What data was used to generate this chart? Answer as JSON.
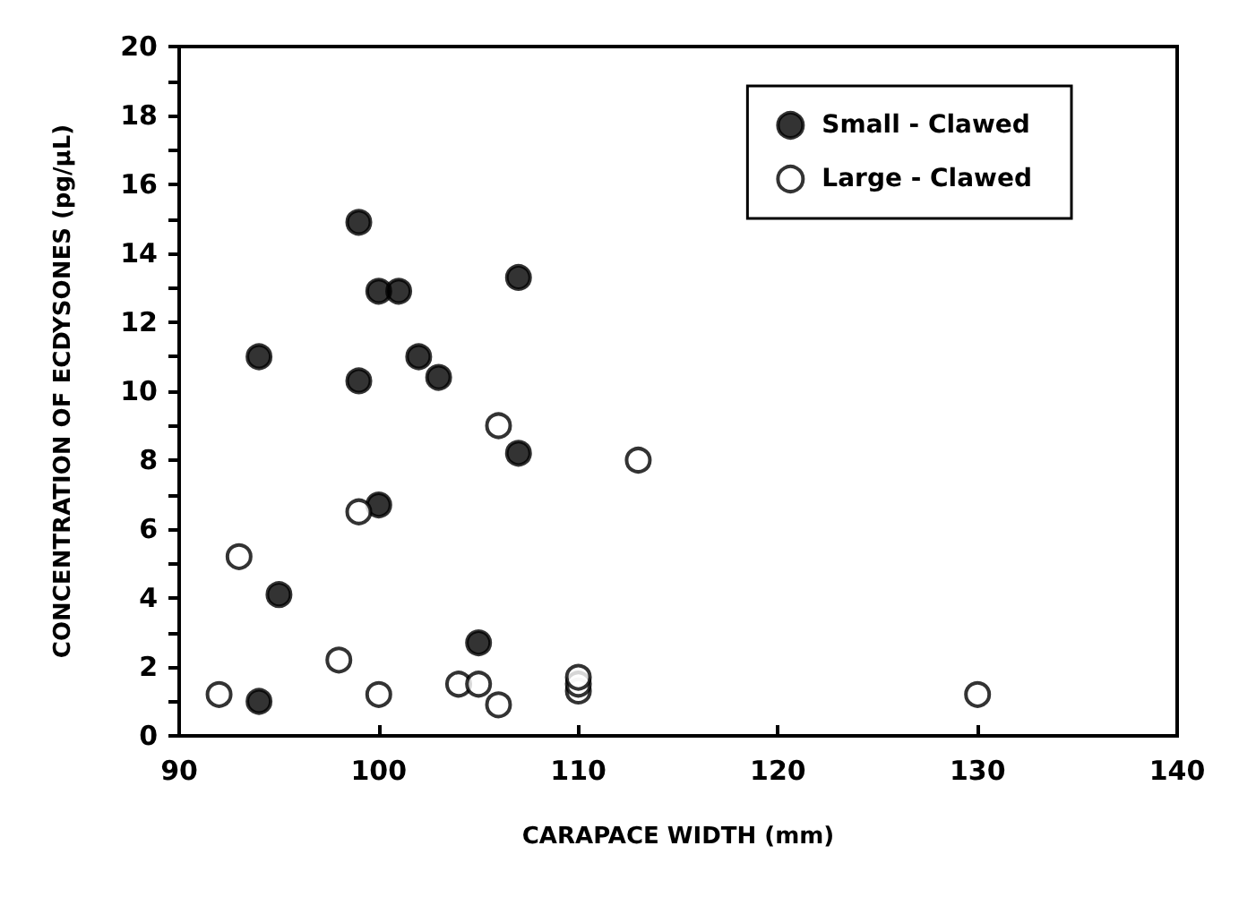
{
  "chart_data": {
    "type": "scatter",
    "xlabel": "CARAPACE WIDTH (mm)",
    "ylabel": "CONCENTRATION OF ECDYSONES (pg/µL)",
    "xlim": [
      90,
      140
    ],
    "xticks": [
      90,
      100,
      110,
      120,
      130,
      140
    ],
    "ylim": [
      0,
      20
    ],
    "yticks": [
      0,
      {
        "value": 1,
        "label": null
      },
      2,
      {
        "value": 3,
        "label": null
      },
      4,
      {
        "value": 5,
        "label": null
      },
      6,
      {
        "value": 7,
        "label": null
      },
      8,
      {
        "value": 9,
        "label": null
      },
      10,
      {
        "value": 11,
        "label": null
      },
      12,
      {
        "value": 13,
        "label": null
      },
      14,
      {
        "value": 15,
        "label": null
      },
      16,
      {
        "value": 17,
        "label": null
      },
      18,
      {
        "value": 19,
        "label": null
      },
      20
    ],
    "grid": false,
    "legend": "top right",
    "marker": "circle",
    "series": [
      {
        "name": "Small - Clawed",
        "color": "#000000",
        "x": [
          94,
          99,
          100,
          101,
          107,
          99,
          102,
          103,
          107,
          100,
          95,
          105,
          94
        ],
        "values": [
          11,
          14.9,
          12.9,
          12.9,
          13.3,
          10.3,
          11,
          10.4,
          8.2,
          6.7,
          4.1,
          2.7,
          1
        ]
      },
      {
        "name": "Large - Clawed",
        "color": "#ffffff",
        "x": [
          92,
          93,
          98,
          99,
          100,
          104,
          105,
          106,
          106,
          110,
          110,
          110,
          113,
          130
        ],
        "values": [
          1.2,
          5.2,
          2.2,
          6.5,
          1.2,
          1.5,
          1.5,
          0.9,
          9,
          1.3,
          1.5,
          1.7,
          8,
          1.2
        ]
      }
    ]
  }
}
